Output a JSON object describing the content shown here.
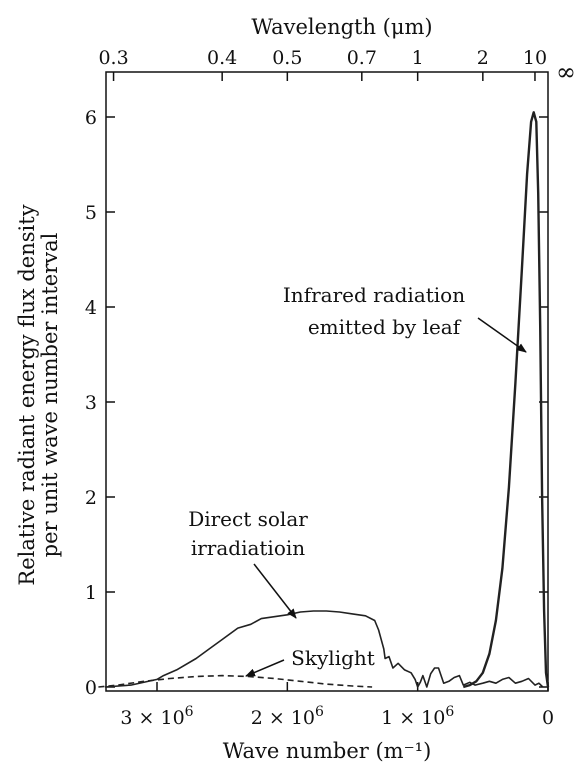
{
  "chart_data": {
    "type": "line",
    "title": "",
    "top_axis": {
      "label": "Wavelength (μm)",
      "ticks": [
        {
          "um": 0.3,
          "label": "0.3"
        },
        {
          "um": 0.4,
          "label": "0.4"
        },
        {
          "um": 0.5,
          "label": "0.5"
        },
        {
          "um": 0.7,
          "label": "0.7"
        },
        {
          "um": 1,
          "label": "1"
        },
        {
          "um": 2,
          "label": "2"
        },
        {
          "um": 10,
          "label": "10"
        }
      ],
      "infinity_label": "∞"
    },
    "xlabel": "Wave number (m⁻¹)",
    "ylabel_line1": "Relative radiant energy flux density",
    "ylabel_line2": "per unit wave number interval",
    "xlim": [
      3500000,
      0
    ],
    "ylim": [
      0,
      6.5
    ],
    "x_ticks": [
      {
        "value": 3000000,
        "base": "3 × 10",
        "exp": "6"
      },
      {
        "value": 2000000,
        "base": "2 × 10",
        "exp": "6"
      },
      {
        "value": 1000000,
        "base": "1 × 10",
        "exp": "6"
      },
      {
        "value": 0,
        "base": "0",
        "exp": ""
      }
    ],
    "y_ticks": [
      0,
      1,
      2,
      3,
      4,
      5,
      6
    ],
    "series": [
      {
        "name": "Direct solar irradiatioin",
        "style": "solid",
        "points": [
          [
            3400000,
            0.0
          ],
          [
            3200000,
            0.02
          ],
          [
            3000000,
            0.08
          ],
          [
            2950000,
            0.12
          ],
          [
            2850000,
            0.18
          ],
          [
            2700000,
            0.3
          ],
          [
            2600000,
            0.4
          ],
          [
            2500000,
            0.5
          ],
          [
            2380000,
            0.62
          ],
          [
            2280000,
            0.66
          ],
          [
            2200000,
            0.72
          ],
          [
            2100000,
            0.74
          ],
          [
            2000000,
            0.76
          ],
          [
            1900000,
            0.79
          ],
          [
            1800000,
            0.8
          ],
          [
            1700000,
            0.8
          ],
          [
            1600000,
            0.79
          ],
          [
            1500000,
            0.77
          ],
          [
            1400000,
            0.75
          ],
          [
            1330000,
            0.7
          ],
          [
            1300000,
            0.6
          ],
          [
            1260000,
            0.4
          ],
          [
            1250000,
            0.3
          ],
          [
            1220000,
            0.32
          ],
          [
            1190000,
            0.2
          ],
          [
            1150000,
            0.25
          ],
          [
            1100000,
            0.18
          ],
          [
            1050000,
            0.15
          ],
          [
            1020000,
            0.08
          ],
          [
            1000000,
            0.0
          ],
          [
            980000,
            0.05
          ],
          [
            960000,
            0.12
          ],
          [
            930000,
            0.0
          ],
          [
            900000,
            0.14
          ],
          [
            870000,
            0.2
          ],
          [
            840000,
            0.2
          ],
          [
            800000,
            0.04
          ],
          [
            760000,
            0.06
          ],
          [
            720000,
            0.1
          ],
          [
            680000,
            0.12
          ],
          [
            650000,
            0.02
          ],
          [
            600000,
            0.05
          ],
          [
            560000,
            0.02
          ],
          [
            500000,
            0.04
          ],
          [
            450000,
            0.06
          ],
          [
            400000,
            0.04
          ],
          [
            350000,
            0.08
          ],
          [
            300000,
            0.1
          ],
          [
            250000,
            0.04
          ],
          [
            200000,
            0.06
          ],
          [
            150000,
            0.09
          ],
          [
            100000,
            0.02
          ],
          [
            70000,
            0.04
          ],
          [
            40000,
            0.0
          ]
        ]
      },
      {
        "name": "Skylight",
        "style": "dashed",
        "points": [
          [
            3450000,
            0.0
          ],
          [
            3300000,
            0.02
          ],
          [
            3100000,
            0.06
          ],
          [
            2900000,
            0.09
          ],
          [
            2700000,
            0.11
          ],
          [
            2500000,
            0.12
          ],
          [
            2300000,
            0.11
          ],
          [
            2100000,
            0.09
          ],
          [
            1900000,
            0.06
          ],
          [
            1700000,
            0.03
          ],
          [
            1500000,
            0.01
          ],
          [
            1350000,
            0.0
          ]
        ]
      },
      {
        "name": "Infrared radiation emitted by leaf",
        "style": "solid-bold",
        "points": [
          [
            650000,
            0.0
          ],
          [
            600000,
            0.02
          ],
          [
            550000,
            0.06
          ],
          [
            500000,
            0.15
          ],
          [
            450000,
            0.35
          ],
          [
            400000,
            0.7
          ],
          [
            350000,
            1.25
          ],
          [
            300000,
            2.1
          ],
          [
            250000,
            3.2
          ],
          [
            200000,
            4.4
          ],
          [
            160000,
            5.4
          ],
          [
            130000,
            5.95
          ],
          [
            110000,
            6.05
          ],
          [
            90000,
            5.95
          ],
          [
            75000,
            5.2
          ],
          [
            60000,
            3.8
          ],
          [
            45000,
            2.0
          ],
          [
            30000,
            0.8
          ],
          [
            15000,
            0.15
          ],
          [
            0,
            0.0
          ]
        ]
      }
    ],
    "annotations": {
      "infrared_line1": "Infrared radiation",
      "infrared_line2": "emitted by leaf",
      "solar_line1": "Direct solar",
      "solar_line2": "irradiatioin",
      "skylight": "Skylight"
    }
  }
}
